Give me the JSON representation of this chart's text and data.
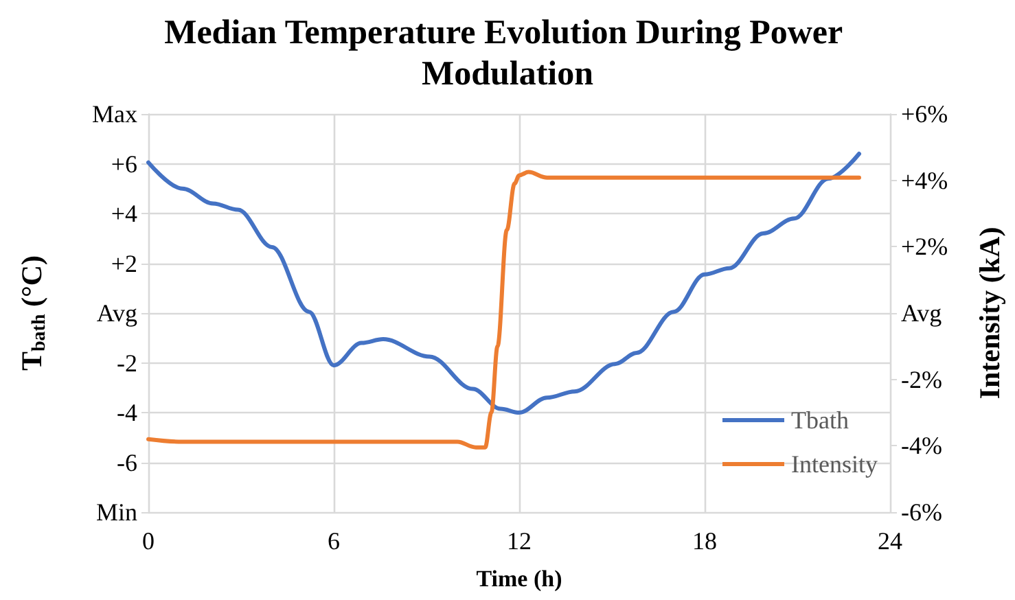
{
  "chart_data": {
    "type": "line",
    "title": "Median Temperature Evolution During Power Modulation",
    "xlabel": "Time (h)",
    "ylabel": "T$_{bath}$ (°C)",
    "y2label": "Intensity (kA)",
    "xlim": [
      0,
      24
    ],
    "xticks": [
      0,
      6,
      12,
      18,
      24
    ],
    "ylim": [
      -8,
      8
    ],
    "yticks": [
      {
        "value": -8,
        "label": "Min"
      },
      {
        "value": -6,
        "label": "-6"
      },
      {
        "value": -4,
        "label": "-4"
      },
      {
        "value": -2,
        "label": "-2"
      },
      {
        "value": 0,
        "label": "Avg"
      },
      {
        "value": 2,
        "label": "+2"
      },
      {
        "value": 4,
        "label": "+4"
      },
      {
        "value": 6,
        "label": "+6"
      },
      {
        "value": 8,
        "label": "Max"
      }
    ],
    "y2lim": [
      -6,
      6
    ],
    "y2ticks": [
      {
        "value": -6,
        "label": "-6%"
      },
      {
        "value": -4,
        "label": "-4%"
      },
      {
        "value": -2,
        "label": "-2%"
      },
      {
        "value": 0,
        "label": "Avg"
      },
      {
        "value": 2,
        "label": "+2%"
      },
      {
        "value": 4,
        "label": "+4%"
      },
      {
        "value": 6,
        "label": "+6%"
      }
    ],
    "grid": true,
    "legend": "bottom right",
    "marker": "none",
    "line_style": "solid",
    "series": [
      {
        "name": "Tbath",
        "color": "#4472c4",
        "x": [
          0,
          1.1,
          2.1,
          2.9,
          4,
          5.2,
          6,
          6.9,
          7.6,
          9.1,
          10.5,
          11.4,
          12,
          12.9,
          13.8,
          15.1,
          15.8,
          17,
          18,
          18.8,
          19.9,
          20.9,
          22,
          23
        ],
        "values": [
          6.05,
          5.0,
          4.4,
          4.15,
          2.65,
          0.05,
          -2.1,
          -1.2,
          -1.05,
          -1.75,
          -3.05,
          -3.85,
          -4.0,
          -3.4,
          -3.15,
          -2.05,
          -1.6,
          0.05,
          1.55,
          1.8,
          3.2,
          3.8,
          5.4,
          6.4
        ]
      },
      {
        "name": "Intensity",
        "color": "#ed7d31",
        "axis": "y2",
        "x": [
          0,
          1.1,
          3,
          6,
          8,
          10,
          10.6,
          10.9,
          11.1,
          11.3,
          11.6,
          11.85,
          12,
          12.3,
          12.9,
          15,
          18,
          21,
          23
        ],
        "values": [
          -3.8,
          -3.88,
          -3.88,
          -3.88,
          -3.88,
          -3.88,
          -4.05,
          -4.05,
          -3.0,
          -1.0,
          2.5,
          3.9,
          4.15,
          4.25,
          4.08,
          4.08,
          4.08,
          4.08,
          4.08
        ]
      }
    ]
  }
}
